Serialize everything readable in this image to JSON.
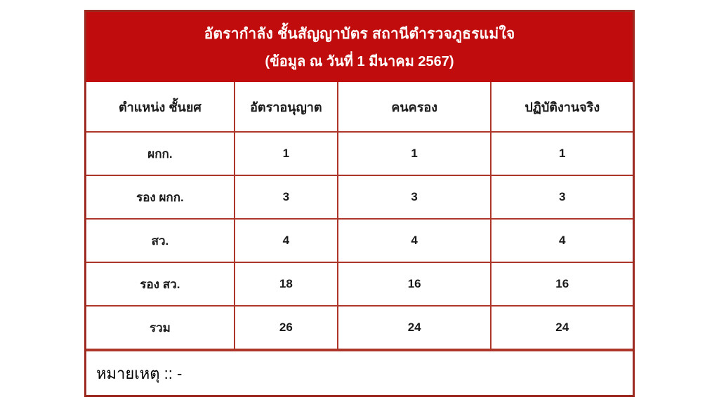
{
  "title": {
    "line1": "อัตรากำลัง ชั้นสัญญาบัตร สถานีตำรวจภูธรแม่ใจ",
    "line2": "(ข้อมูล ณ วันที่ 1 มีนาคม 2567)"
  },
  "table": {
    "headers": [
      "ตำแหน่ง ชั้นยศ",
      "อัตราอนุญาต",
      "คนครอง",
      "ปฏิบัติงานจริง"
    ],
    "rows": [
      [
        "ผกก.",
        "1",
        "1",
        "1"
      ],
      [
        "รอง ผกก.",
        "3",
        "3",
        "3"
      ],
      [
        "สว.",
        "4",
        "4",
        "4"
      ],
      [
        "รอง สว.",
        "18",
        "16",
        "16"
      ],
      [
        "รวม",
        "26",
        "24",
        "24"
      ]
    ]
  },
  "note": "หมายเหตุ :: -",
  "colors": {
    "header_bg": "#c00c0c",
    "border_outer": "#9c2a20",
    "border_inner": "#ad352a",
    "header_text": "#ffffff",
    "cell_text": "#1a1a1a",
    "page_bg": "#ffffff"
  }
}
